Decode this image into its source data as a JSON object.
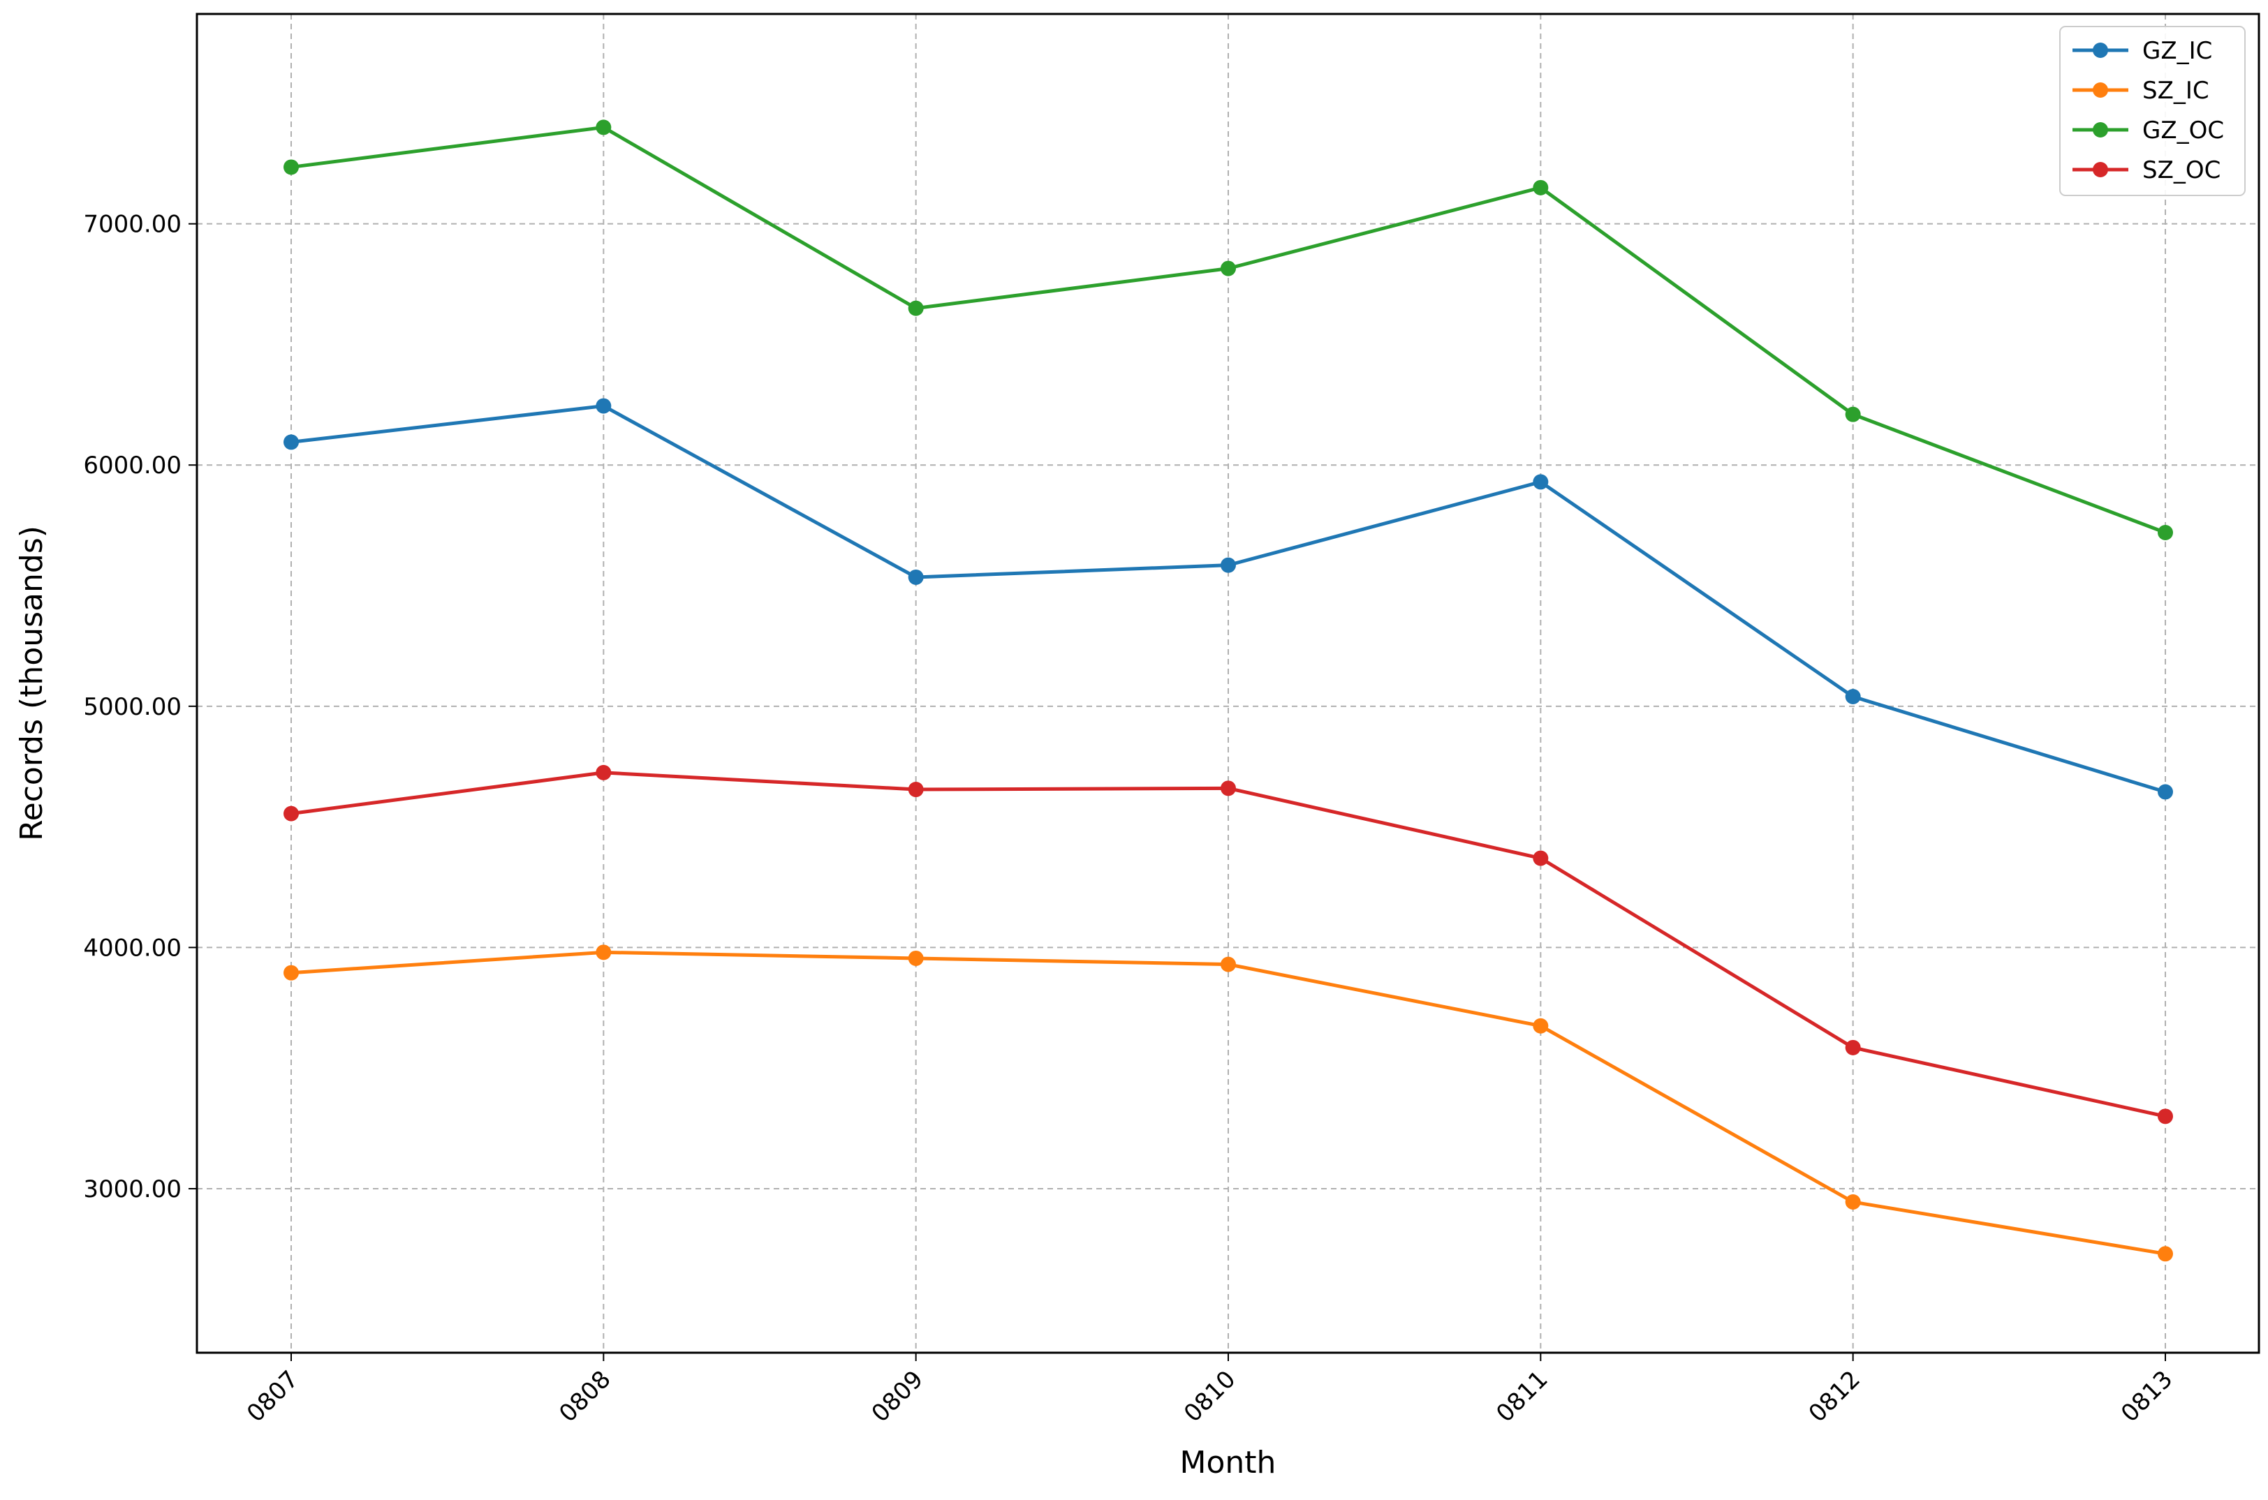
{
  "chart_data": {
    "type": "line",
    "title": "",
    "xlabel": "Month",
    "ylabel": "Records (thousands)",
    "categories": [
      "0807",
      "0808",
      "0809",
      "0810",
      "0811",
      "0812",
      "0813"
    ],
    "ylim": [
      2320,
      7870
    ],
    "yticks": [
      3000,
      4000,
      5000,
      6000,
      7000
    ],
    "ytick_labels": [
      "3000.00",
      "4000.00",
      "5000.00",
      "6000.00",
      "7000.00"
    ],
    "grid": true,
    "grid_style": "dashed",
    "legend_position": "top-right",
    "marker": "circle",
    "series": [
      {
        "name": "GZ_IC",
        "color": "#1f77b4",
        "values": [
          6095,
          6245,
          5535,
          5585,
          5930,
          5040,
          4645
        ]
      },
      {
        "name": "SZ_IC",
        "color": "#ff7f0e",
        "values": [
          3895,
          3980,
          3955,
          3930,
          3675,
          2945,
          2730
        ]
      },
      {
        "name": "GZ_OC",
        "color": "#2ca02c",
        "values": [
          7235,
          7400,
          6650,
          6815,
          7150,
          6210,
          5720
        ]
      },
      {
        "name": "SZ_OC",
        "color": "#d62728",
        "values": [
          4555,
          4725,
          4655,
          4660,
          4370,
          3585,
          3300
        ]
      }
    ]
  }
}
